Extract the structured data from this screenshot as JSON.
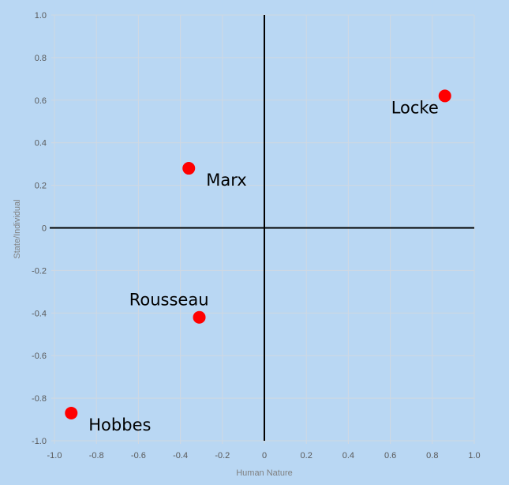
{
  "chart_data": {
    "type": "scatter",
    "title": "",
    "xlabel": "Human Nature",
    "ylabel": "State/Individual",
    "xlim": [
      -1.0,
      1.0
    ],
    "ylim": [
      -1.0,
      1.0
    ],
    "grid": true,
    "legend": "none",
    "x_ticks": [
      "-1.0",
      "-0.8",
      "-0.6",
      "-0.4",
      "-0.2",
      "0",
      "0.2",
      "0.4",
      "0.6",
      "0.8",
      "1.0"
    ],
    "y_ticks": [
      "1.0",
      "0.8",
      "0.6",
      "0.4",
      "0.2",
      "0",
      "-0.2",
      "-0.4",
      "-0.6",
      "-0.8",
      "-1.0"
    ],
    "points": [
      {
        "label": "Locke",
        "x": 0.86,
        "y": 0.62,
        "label_pos": "left-below"
      },
      {
        "label": "Marx",
        "x": -0.36,
        "y": 0.28,
        "label_pos": "right-below"
      },
      {
        "label": "Rousseau",
        "x": -0.31,
        "y": -0.42,
        "label_pos": "above-left"
      },
      {
        "label": "Hobbes",
        "x": -0.92,
        "y": -0.87,
        "label_pos": "right-below"
      }
    ],
    "colors": {
      "background": "#b9d7f3",
      "grid": "#d0d8e2",
      "axes": "#000000",
      "marker": "#ff0000"
    }
  }
}
